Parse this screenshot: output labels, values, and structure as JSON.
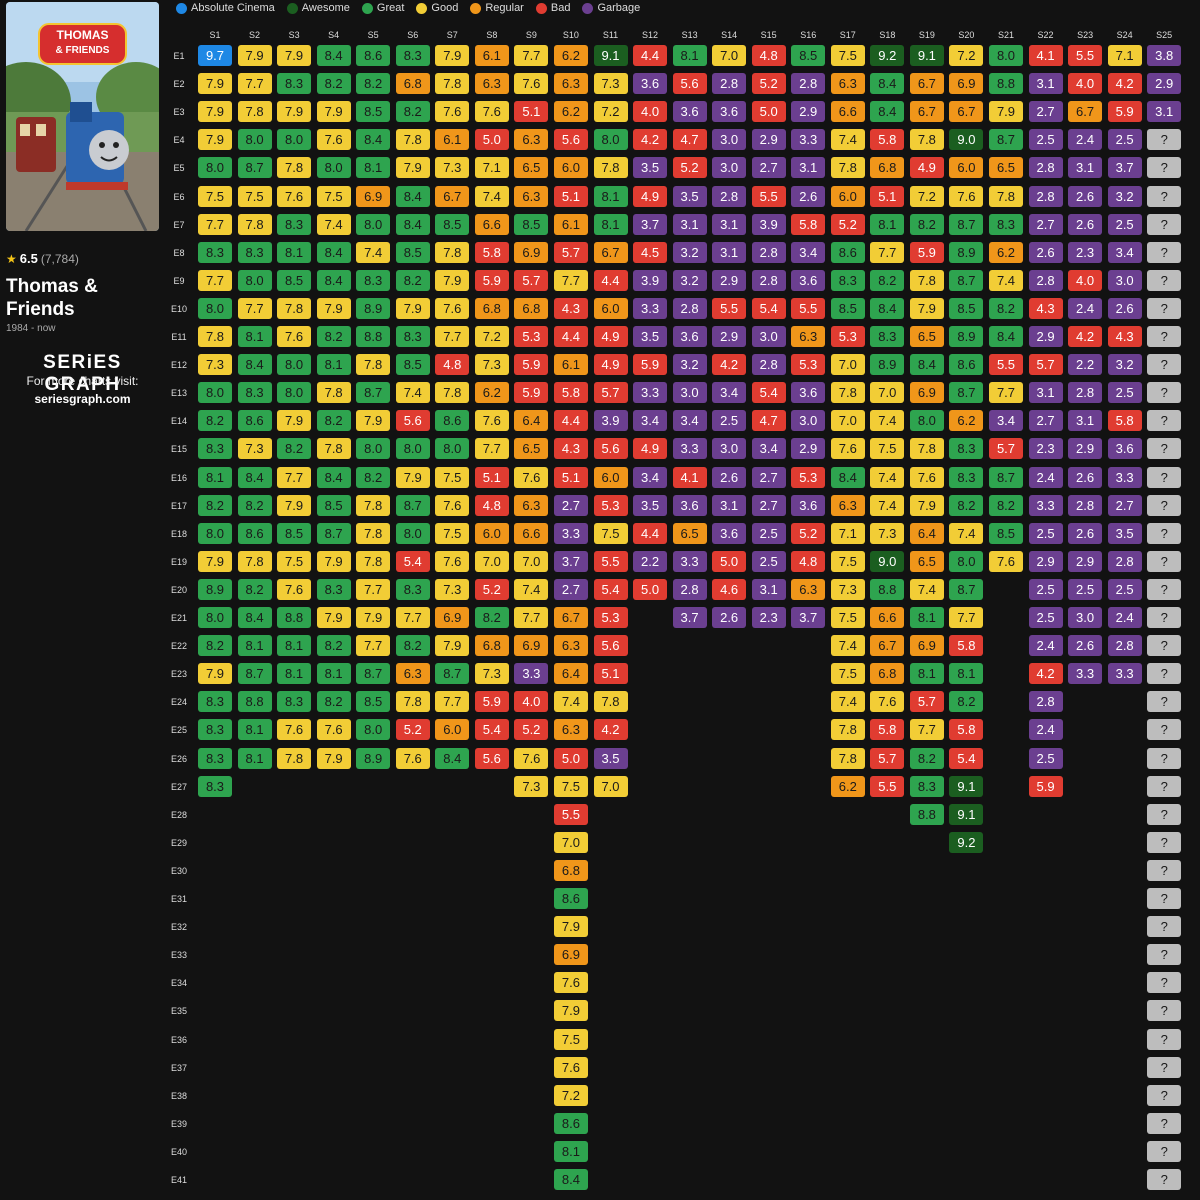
{
  "show": {
    "poster_logo_line1": "THOMAS",
    "poster_logo_line2": "& FRIENDS",
    "rating": "6.5",
    "votes": "(7,784)",
    "title": "Thomas & Friends",
    "years": "1984 - now"
  },
  "brand": {
    "name": "SERiES GRAPH",
    "tagline": "For more charts visit:",
    "url": "seriesgraph.com"
  },
  "legend": [
    {
      "label": "Absolute Cinema",
      "color": "#1e88e5"
    },
    {
      "label": "Awesome",
      "color": "#1b5e20"
    },
    {
      "label": "Great",
      "color": "#2ea44f"
    },
    {
      "label": "Good",
      "color": "#f2cd36"
    },
    {
      "label": "Regular",
      "color": "#f0961a"
    },
    {
      "label": "Bad",
      "color": "#e03c31"
    },
    {
      "label": "Garbage",
      "color": "#6b3f90"
    }
  ],
  "unknown_color": "#bdbdbd",
  "chart_data": {
    "type": "heatmap",
    "x_label_prefix": "S",
    "y_label_prefix": "E",
    "seasons": [
      "S1",
      "S2",
      "S3",
      "S4",
      "S5",
      "S6",
      "S7",
      "S8",
      "S9",
      "S10",
      "S11",
      "S12",
      "S13",
      "S14",
      "S15",
      "S16",
      "S17",
      "S18",
      "S19",
      "S20",
      "S21",
      "S22",
      "S23",
      "S24",
      "S25"
    ],
    "episodes": [
      "E1",
      "E2",
      "E3",
      "E4",
      "E5",
      "E6",
      "E7",
      "E8",
      "E9",
      "E10",
      "E11",
      "E12",
      "E13",
      "E14",
      "E15",
      "E16",
      "E17",
      "E18",
      "E19",
      "E20",
      "E21",
      "E22",
      "E23",
      "E24",
      "E25",
      "E26",
      "E27",
      "E28",
      "E29",
      "E30",
      "E31",
      "E32",
      "E33",
      "E34",
      "E35",
      "E36",
      "E37",
      "E38",
      "E39",
      "E40",
      "E41"
    ],
    "ratings": [
      [
        "9.7",
        "7.9",
        "7.9",
        "7.9",
        "8.0",
        "7.5",
        "7.7",
        "8.3",
        "7.7",
        "8.0",
        "7.8",
        "7.3",
        "8.0",
        "8.2",
        "8.3",
        "8.1",
        "8.2",
        "8.0",
        "7.9",
        "8.9",
        "8.0",
        "8.2",
        "7.9",
        "8.3",
        "8.3",
        "8.3",
        "8.3"
      ],
      [
        "7.9",
        "7.7",
        "7.8",
        "8.0",
        "8.7",
        "7.5",
        "7.8",
        "8.3",
        "8.0",
        "7.7",
        "8.1",
        "8.4",
        "8.3",
        "8.6",
        "7.3",
        "8.4",
        "8.2",
        "8.6",
        "7.8",
        "8.2",
        "8.4",
        "8.1",
        "8.7",
        "8.8",
        "8.1",
        "8.1"
      ],
      [
        "7.9",
        "8.3",
        "7.9",
        "8.0",
        "7.8",
        "7.6",
        "8.3",
        "8.1",
        "8.5",
        "7.8",
        "7.6",
        "8.0",
        "8.0",
        "7.9",
        "8.2",
        "7.7",
        "7.9",
        "8.5",
        "7.5",
        "7.6",
        "8.8",
        "8.1",
        "8.1",
        "8.3",
        "7.6",
        "7.8"
      ],
      [
        "8.4",
        "8.2",
        "7.9",
        "7.6",
        "8.0",
        "7.5",
        "7.4",
        "8.4",
        "8.4",
        "7.9",
        "8.2",
        "8.1",
        "7.8",
        "8.2",
        "7.8",
        "8.4",
        "8.5",
        "8.7",
        "7.9",
        "8.3",
        "7.9",
        "8.2",
        "8.1",
        "8.2",
        "7.6",
        "7.9"
      ],
      [
        "8.6",
        "8.2",
        "8.5",
        "8.4",
        "8.1",
        "6.9",
        "8.0",
        "7.4",
        "8.3",
        "8.9",
        "8.8",
        "7.8",
        "8.7",
        "7.9",
        "8.0",
        "8.2",
        "7.8",
        "7.8",
        "7.8",
        "7.7",
        "7.9",
        "7.7",
        "8.7",
        "8.5",
        "8.0",
        "8.9"
      ],
      [
        "8.3",
        "6.8",
        "8.2",
        "7.8",
        "7.9",
        "8.4",
        "8.4",
        "8.5",
        "8.2",
        "7.9",
        "8.3",
        "8.5",
        "7.4",
        "5.6",
        "8.0",
        "7.9",
        "8.7",
        "8.0",
        "5.4",
        "8.3",
        "7.7",
        "8.2",
        "6.3",
        "7.8",
        "5.2",
        "7.6"
      ],
      [
        "7.9",
        "7.8",
        "7.6",
        "6.1",
        "7.3",
        "6.7",
        "8.5",
        "7.8",
        "7.9",
        "7.6",
        "7.7",
        "4.8",
        "7.8",
        "8.6",
        "8.0",
        "7.5",
        "7.6",
        "7.5",
        "7.6",
        "7.3",
        "6.9",
        "7.9",
        "8.7",
        "7.7",
        "6.0",
        "8.4"
      ],
      [
        "6.1",
        "6.3",
        "7.6",
        "5.0",
        "7.1",
        "7.4",
        "6.6",
        "5.8",
        "5.9",
        "6.8",
        "7.2",
        "7.3",
        "6.2",
        "7.6",
        "7.7",
        "5.1",
        "4.8",
        "6.0",
        "7.0",
        "5.2",
        "8.2",
        "6.8",
        "7.3",
        "5.9",
        "5.4",
        "5.6"
      ],
      [
        "7.7",
        "7.6",
        "5.1",
        "6.3",
        "6.5",
        "6.3",
        "8.5",
        "6.9",
        "5.7",
        "6.8",
        "5.3",
        "5.9",
        "5.9",
        "6.4",
        "6.5",
        "7.6",
        "6.3",
        "6.6",
        "7.0",
        "7.4",
        "7.7",
        "6.9",
        "3.3",
        "4.0",
        "5.2",
        "7.6",
        "7.3"
      ],
      [
        "6.2",
        "6.3",
        "6.2",
        "5.6",
        "6.0",
        "5.1",
        "6.1",
        "5.7",
        "7.7",
        "4.3",
        "4.4",
        "6.1",
        "5.8",
        "4.4",
        "4.3",
        "5.1",
        "2.7",
        "3.3",
        "3.7",
        "2.7",
        "6.7",
        "6.3",
        "6.4",
        "7.4",
        "6.3",
        "5.0",
        "7.5",
        "5.5",
        "7.0",
        "6.8",
        "8.6",
        "7.9",
        "6.9",
        "7.6",
        "7.9",
        "7.5",
        "7.6",
        "7.2",
        "8.6",
        "8.1",
        "8.4"
      ],
      [
        "9.1",
        "7.3",
        "7.2",
        "8.0",
        "7.8",
        "8.1",
        "8.1",
        "6.7",
        "4.4",
        "6.0",
        "4.9",
        "4.9",
        "5.7",
        "3.9",
        "5.6",
        "6.0",
        "5.3",
        "7.5",
        "5.5",
        "5.4",
        "5.3",
        "5.6",
        "5.1",
        "7.8",
        "4.2",
        "3.5",
        "7.0"
      ],
      [
        "4.4",
        "3.6",
        "4.0",
        "4.2",
        "3.5",
        "4.9",
        "3.7",
        "4.5",
        "3.9",
        "3.3",
        "3.5",
        "5.9",
        "3.3",
        "3.4",
        "4.9",
        "3.4",
        "3.5",
        "4.4",
        "2.2",
        "5.0"
      ],
      [
        "8.1",
        "5.6",
        "3.6",
        "4.7",
        "5.2",
        "3.5",
        "3.1",
        "3.2",
        "3.2",
        "2.8",
        "3.6",
        "3.2",
        "3.0",
        "3.4",
        "3.3",
        "4.1",
        "3.6",
        "6.5",
        "3.3",
        "2.8",
        "3.7"
      ],
      [
        "7.0",
        "2.8",
        "3.6",
        "3.0",
        "3.0",
        "2.8",
        "3.1",
        "3.1",
        "2.9",
        "5.5",
        "2.9",
        "4.2",
        "3.4",
        "2.5",
        "3.0",
        "2.6",
        "3.1",
        "3.6",
        "5.0",
        "4.6",
        "2.6"
      ],
      [
        "4.8",
        "5.2",
        "5.0",
        "2.9",
        "2.7",
        "5.5",
        "3.9",
        "2.8",
        "2.8",
        "5.4",
        "3.0",
        "2.8",
        "5.4",
        "4.7",
        "3.4",
        "2.7",
        "2.7",
        "2.5",
        "2.5",
        "3.1",
        "2.3"
      ],
      [
        "8.5",
        "2.8",
        "2.9",
        "3.3",
        "3.1",
        "2.6",
        "5.8",
        "3.4",
        "3.6",
        "5.5",
        "6.3",
        "5.3",
        "3.6",
        "3.0",
        "2.9",
        "5.3",
        "3.6",
        "5.2",
        "4.8",
        "6.3",
        "3.7"
      ],
      [
        "7.5",
        "6.3",
        "6.6",
        "7.4",
        "7.8",
        "6.0",
        "5.2",
        "8.6",
        "8.3",
        "8.5",
        "5.3",
        "7.0",
        "7.8",
        "7.0",
        "7.6",
        "8.4",
        "6.3",
        "7.1",
        "7.5",
        "7.3",
        "7.5",
        "7.4",
        "7.5",
        "7.4",
        "7.8",
        "7.8",
        "6.2"
      ],
      [
        "9.2",
        "8.4",
        "8.4",
        "5.8",
        "6.8",
        "5.1",
        "8.1",
        "7.7",
        "8.2",
        "8.4",
        "8.3",
        "8.9",
        "7.0",
        "7.4",
        "7.5",
        "7.4",
        "7.4",
        "7.3",
        "9.0",
        "8.8",
        "6.6",
        "6.7",
        "6.8",
        "7.6",
        "5.8",
        "5.7",
        "5.5"
      ],
      [
        "9.1",
        "6.7",
        "6.7",
        "7.8",
        "4.9",
        "7.2",
        "8.2",
        "5.9",
        "7.8",
        "7.9",
        "6.5",
        "8.4",
        "6.9",
        "8.0",
        "7.8",
        "7.6",
        "7.9",
        "6.4",
        "6.5",
        "7.4",
        "8.1",
        "6.9",
        "8.1",
        "5.7",
        "7.7",
        "8.2",
        "8.3",
        "8.8"
      ],
      [
        "7.2",
        "6.9",
        "6.7",
        "9.0",
        "6.0",
        "7.6",
        "8.7",
        "8.9",
        "8.7",
        "8.5",
        "8.9",
        "8.6",
        "8.7",
        "6.2",
        "8.3",
        "8.3",
        "8.2",
        "7.4",
        "8.0",
        "8.7",
        "7.7",
        "5.8",
        "8.1",
        "8.2",
        "5.8",
        "5.4",
        "9.1",
        "9.1",
        "9.2"
      ],
      [
        "8.0",
        "8.8",
        "7.9",
        "8.7",
        "6.5",
        "7.8",
        "8.3",
        "6.2",
        "7.4",
        "8.2",
        "8.4",
        "5.5",
        "7.7",
        "3.4",
        "5.7",
        "8.7",
        "8.2",
        "8.5",
        "7.6"
      ],
      [
        "4.1",
        "3.1",
        "2.7",
        "2.5",
        "2.8",
        "2.8",
        "2.7",
        "2.6",
        "2.8",
        "4.3",
        "2.9",
        "5.7",
        "3.1",
        "2.7",
        "2.3",
        "2.4",
        "3.3",
        "2.5",
        "2.9",
        "2.5",
        "2.5",
        "2.4",
        "4.2",
        "2.8",
        "2.4",
        "2.5",
        "5.9"
      ],
      [
        "5.5",
        "4.0",
        "6.7",
        "2.4",
        "3.1",
        "2.6",
        "2.6",
        "2.3",
        "4.0",
        "2.4",
        "4.2",
        "2.2",
        "2.8",
        "3.1",
        "2.9",
        "2.6",
        "2.8",
        "2.6",
        "2.9",
        "2.5",
        "3.0",
        "2.6",
        "3.3"
      ],
      [
        "7.1",
        "4.2",
        "5.9",
        "2.5",
        "3.7",
        "3.2",
        "2.5",
        "3.4",
        "3.0",
        "2.6",
        "4.3",
        "3.2",
        "2.5",
        "5.8",
        "3.6",
        "3.3",
        "2.7",
        "3.5",
        "2.8",
        "2.5",
        "2.4",
        "2.8",
        "3.3"
      ],
      [
        "3.8",
        "2.9",
        "3.1",
        "?",
        "?",
        "?",
        "?",
        "?",
        "?",
        "?",
        "?",
        "?",
        "?",
        "?",
        "?",
        "?",
        "?",
        "?",
        "?",
        "?",
        "?",
        "?",
        "?",
        "?",
        "?",
        "?",
        "?",
        "?",
        "?",
        "?",
        "?",
        "?",
        "?",
        "?",
        "?",
        "?",
        "?",
        "?",
        "?",
        "?",
        "?"
      ]
    ]
  }
}
